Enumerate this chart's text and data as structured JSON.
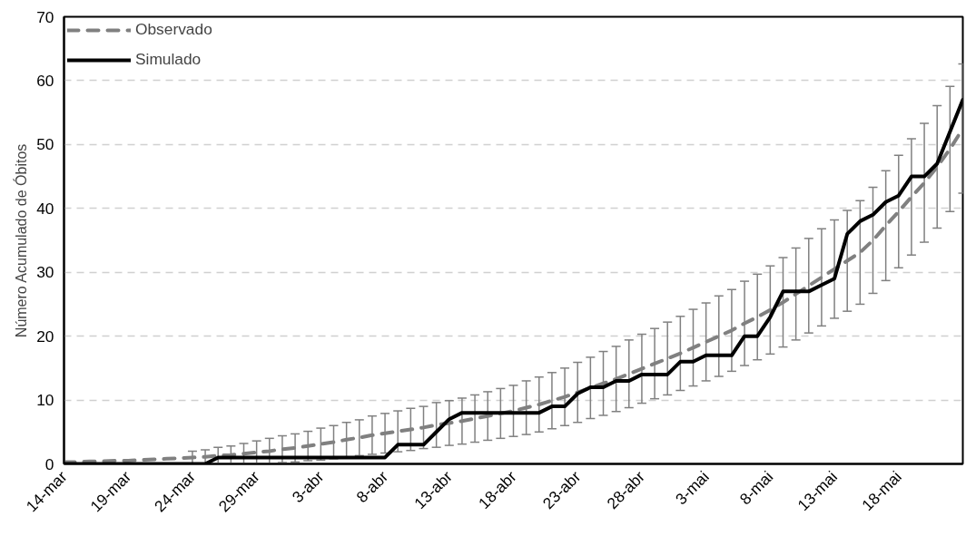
{
  "chart_data": {
    "type": "line",
    "ylabel": "Número Acumulado de Óbitos",
    "categories": [
      "14-mar",
      null,
      null,
      null,
      null,
      "19-mar",
      null,
      null,
      null,
      null,
      "24-mar",
      null,
      null,
      null,
      null,
      "29-mar",
      null,
      null,
      null,
      null,
      "3-abr",
      null,
      null,
      null,
      null,
      "8-abr",
      null,
      null,
      null,
      null,
      "13-abr",
      null,
      null,
      null,
      null,
      "18-abr",
      null,
      null,
      null,
      null,
      "23-abr",
      null,
      null,
      null,
      null,
      "28-abr",
      null,
      null,
      null,
      null,
      "3-mai",
      null,
      null,
      null,
      null,
      "8-mai",
      null,
      null,
      null,
      null,
      "13-mai",
      null,
      null,
      null,
      null,
      "18-mai",
      null,
      null,
      null,
      null,
      null
    ],
    "series": [
      {
        "name": "Observado",
        "color": "#808080",
        "line_style": "dashed",
        "values": [
          0.3,
          0.3,
          0.4,
          0.4,
          0.5,
          0.5,
          0.6,
          0.7,
          0.8,
          0.9,
          1.0,
          1.1,
          1.3,
          1.4,
          1.6,
          1.8,
          2.0,
          2.3,
          2.5,
          2.8,
          3.1,
          3.4,
          3.8,
          4.1,
          4.5,
          4.8,
          5.1,
          5.4,
          5.7,
          6.1,
          6.4,
          6.7,
          7.1,
          7.5,
          7.9,
          8.3,
          8.8,
          9.3,
          9.9,
          10.5,
          11.2,
          11.9,
          12.6,
          13.3,
          14.1,
          14.9,
          15.7,
          16.5,
          17.3,
          18.2,
          19.1,
          20.0,
          20.9,
          22.0,
          23.0,
          24.1,
          25.3,
          26.6,
          27.9,
          29.2,
          30.5,
          31.8,
          33.1,
          35.0,
          37.3,
          39.5,
          41.8,
          44.0,
          46.5,
          49.3,
          52.5
        ],
        "errors": [
          null,
          null,
          null,
          null,
          null,
          null,
          null,
          null,
          null,
          null,
          1.0,
          1.1,
          1.3,
          1.4,
          1.6,
          1.8,
          2.0,
          2.1,
          2.2,
          2.3,
          2.5,
          2.6,
          2.7,
          2.8,
          3.0,
          3.1,
          3.2,
          3.3,
          3.3,
          3.5,
          3.5,
          3.6,
          3.7,
          3.8,
          3.9,
          4.0,
          4.2,
          4.3,
          4.4,
          4.5,
          4.7,
          4.8,
          5.0,
          5.1,
          5.3,
          5.4,
          5.5,
          5.7,
          5.8,
          6.0,
          6.1,
          6.3,
          6.4,
          6.6,
          6.7,
          6.9,
          7.0,
          7.2,
          7.4,
          7.6,
          7.7,
          7.9,
          8.1,
          8.3,
          8.6,
          8.8,
          9.1,
          9.3,
          9.6,
          9.8,
          10.1
        ]
      },
      {
        "name": "Simulado",
        "color": "#000000",
        "line_style": "solid",
        "values": [
          0,
          0,
          0,
          0,
          0,
          0,
          0,
          0,
          0,
          0,
          0,
          0,
          1,
          1,
          1,
          1,
          1,
          1,
          1,
          1,
          1,
          1,
          1,
          1,
          1,
          1,
          3,
          3,
          3,
          5,
          7,
          8,
          8,
          8,
          8,
          8,
          8,
          8,
          9,
          9,
          11,
          12,
          12,
          13,
          13,
          14,
          14,
          14,
          16,
          16,
          17,
          17,
          17,
          20,
          20,
          23,
          27,
          27,
          27,
          28,
          29,
          36,
          38,
          39,
          41,
          42,
          45,
          45,
          47,
          52,
          57
        ]
      }
    ],
    "ylim": [
      0,
      70
    ],
    "yticks": [
      0,
      10,
      20,
      30,
      40,
      50,
      60,
      70
    ],
    "grid": "y",
    "legend": "top left",
    "marker": "none"
  }
}
